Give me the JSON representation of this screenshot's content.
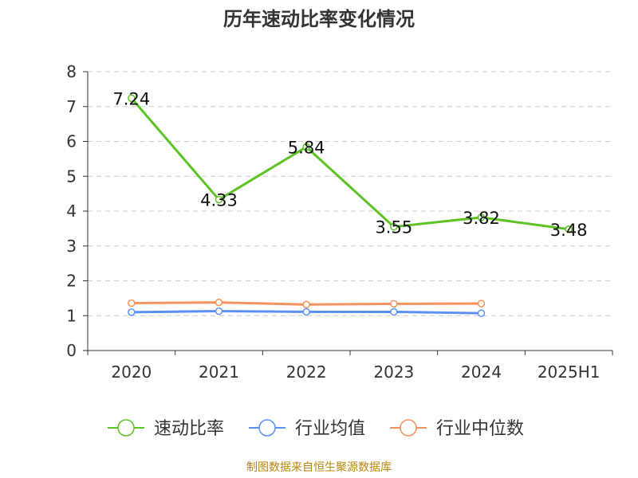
{
  "title": "历年速动比率变化情况",
  "source": "制图数据来自恒生聚源数据库",
  "source_color": "#b8860b",
  "chart_data": {
    "type": "line",
    "title": "历年速动比率变化情况",
    "categories": [
      "2020",
      "2021",
      "2022",
      "2023",
      "2024",
      "2025H1"
    ],
    "ylim": [
      0,
      8
    ],
    "yticks": [
      "0",
      "1",
      "2",
      "3",
      "4",
      "5",
      "6",
      "7",
      "8"
    ],
    "grid": true,
    "legend_position": "bottom",
    "series": [
      {
        "name": "速动比率",
        "color": "#5cc323",
        "values": [
          7.24,
          4.33,
          5.84,
          3.55,
          3.82,
          3.48
        ],
        "labels": [
          "7.24",
          "4.33",
          "5.84",
          "3.55",
          "3.82",
          "3.48"
        ]
      },
      {
        "name": "行业均值",
        "color": "#5b8ff9",
        "values": [
          1.1,
          1.13,
          1.11,
          1.11,
          1.07,
          null
        ]
      },
      {
        "name": "行业中位数",
        "color": "#f5915a",
        "values": [
          1.36,
          1.38,
          1.32,
          1.34,
          1.35,
          null
        ]
      }
    ]
  }
}
